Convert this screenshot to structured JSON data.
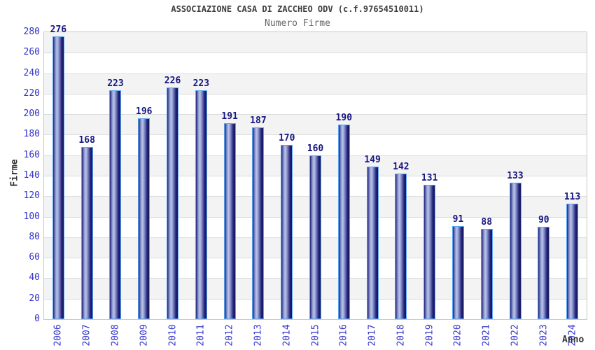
{
  "chart_data": {
    "type": "bar",
    "title": "ASSOCIAZIONE CASA DI ZACCHEO ODV (c.f.97654510011)",
    "subtitle": "Numero Firme",
    "xlabel": "Anno",
    "ylabel": "Firme",
    "categories": [
      "2006",
      "2007",
      "2008",
      "2009",
      "2010",
      "2011",
      "2012",
      "2013",
      "2014",
      "2015",
      "2016",
      "2017",
      "2018",
      "2019",
      "2020",
      "2021",
      "2022",
      "2023",
      "2024"
    ],
    "values": [
      276,
      168,
      223,
      196,
      226,
      223,
      191,
      187,
      170,
      160,
      190,
      149,
      142,
      131,
      91,
      88,
      133,
      90,
      113
    ],
    "ylim": [
      0,
      280
    ],
    "ytick_step": 20,
    "grid": true,
    "legend": false,
    "band_alternation": "gray-white from top",
    "colors": {
      "axis_text": "#3333cc",
      "value_label": "#161680",
      "title_text": "#3d3d3d",
      "subtitle_text": "#666666",
      "bar_outline": "#58a6f2",
      "bar_edge": "#23237a",
      "bar_mid": "#8d98ce",
      "bar_highlight": "#bcc4ea",
      "bar_dark": "#14145a",
      "band_gray": "#f3f3f3",
      "band_white": "#ffffff",
      "gridline": "#dcdcdc",
      "plot_border": "#c9c9c9",
      "axis_title_text": "#333333"
    }
  }
}
